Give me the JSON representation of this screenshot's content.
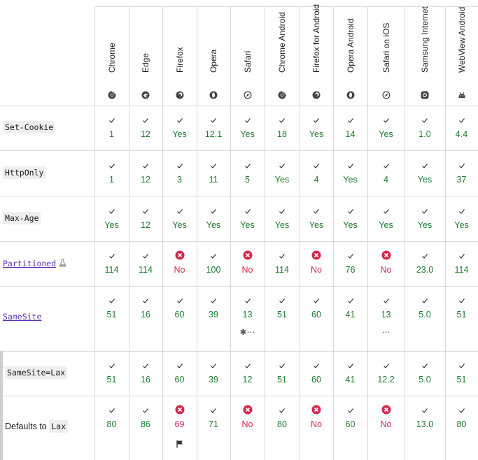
{
  "browsers": [
    {
      "name": "Chrome",
      "icon": "chrome-icon"
    },
    {
      "name": "Edge",
      "icon": "edge-icon"
    },
    {
      "name": "Firefox",
      "icon": "firefox-icon"
    },
    {
      "name": "Opera",
      "icon": "opera-icon"
    },
    {
      "name": "Safari",
      "icon": "safari-icon"
    },
    {
      "name": "Chrome Android",
      "icon": "chrome-icon"
    },
    {
      "name": "Firefox for Android",
      "icon": "firefox-icon"
    },
    {
      "name": "Opera Android",
      "icon": "opera-icon"
    },
    {
      "name": "Safari on iOS",
      "icon": "safari-icon"
    },
    {
      "name": "Samsung Internet",
      "icon": "samsung-internet-icon"
    },
    {
      "name": "WebView Android",
      "icon": "android-icon"
    }
  ],
  "rows": [
    {
      "feature": "Set-Cookie",
      "type": "code",
      "values": [
        "1",
        "12",
        "Yes",
        "12.1",
        "Yes",
        "18",
        "Yes",
        "14",
        "Yes",
        "1.0",
        "4.4"
      ],
      "support": [
        1,
        1,
        1,
        1,
        1,
        1,
        1,
        1,
        1,
        1,
        1
      ]
    },
    {
      "feature": "HttpOnly",
      "type": "code",
      "values": [
        "1",
        "12",
        "3",
        "11",
        "5",
        "Yes",
        "4",
        "Yes",
        "4",
        "Yes",
        "37"
      ],
      "support": [
        1,
        1,
        1,
        1,
        1,
        1,
        1,
        1,
        1,
        1,
        1
      ]
    },
    {
      "feature": "Max-Age",
      "type": "code",
      "values": [
        "Yes",
        "12",
        "Yes",
        "Yes",
        "Yes",
        "Yes",
        "Yes",
        "Yes",
        "Yes",
        "Yes",
        "Yes"
      ],
      "support": [
        1,
        1,
        1,
        1,
        1,
        1,
        1,
        1,
        1,
        1,
        1
      ]
    },
    {
      "feature": "Partitioned",
      "type": "link",
      "experimental": true,
      "values": [
        "114",
        "114",
        "No",
        "100",
        "No",
        "114",
        "No",
        "76",
        "No",
        "23.0",
        "114"
      ],
      "support": [
        1,
        1,
        0,
        1,
        0,
        1,
        0,
        1,
        0,
        1,
        1
      ]
    },
    {
      "feature": "SameSite",
      "type": "link",
      "values": [
        "51",
        "16",
        "60",
        "39",
        "13",
        "51",
        "60",
        "41",
        "13",
        "5.0",
        "51"
      ],
      "support": [
        1,
        1,
        1,
        1,
        1,
        1,
        1,
        1,
        1,
        1,
        1
      ],
      "notes": {
        "4": "✱⋯",
        "8": "⋯"
      }
    },
    {
      "feature": "SameSite=Lax",
      "type": "code",
      "sub": true,
      "values": [
        "51",
        "16",
        "60",
        "39",
        "12",
        "51",
        "60",
        "41",
        "12.2",
        "5.0",
        "51"
      ],
      "support": [
        1,
        1,
        1,
        1,
        1,
        1,
        1,
        1,
        1,
        1,
        1
      ]
    },
    {
      "feature_prefix": "Defaults to ",
      "feature": "Lax",
      "type": "mixed",
      "sub": true,
      "values": [
        "80",
        "86",
        "69",
        "71",
        "No",
        "80",
        "No",
        "60",
        "No",
        "13.0",
        "80"
      ],
      "support": [
        1,
        1,
        0,
        1,
        0,
        1,
        0,
        1,
        0,
        1,
        1
      ],
      "notes": {
        "2": "flag"
      }
    }
  ]
}
